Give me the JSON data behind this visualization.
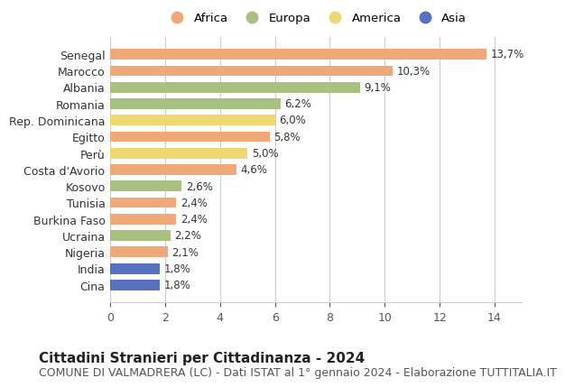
{
  "categories": [
    "Cina",
    "India",
    "Nigeria",
    "Ucraina",
    "Burkina Faso",
    "Tunisia",
    "Kosovo",
    "Costa d'Avorio",
    "Perù",
    "Egitto",
    "Rep. Dominicana",
    "Romania",
    "Albania",
    "Marocco",
    "Senegal"
  ],
  "values": [
    1.8,
    1.8,
    2.1,
    2.2,
    2.4,
    2.4,
    2.6,
    4.6,
    5.0,
    5.8,
    6.0,
    6.2,
    9.1,
    10.3,
    13.7
  ],
  "continents": [
    "Asia",
    "Asia",
    "Africa",
    "Europa",
    "Africa",
    "Africa",
    "Europa",
    "Africa",
    "America",
    "Africa",
    "America",
    "Europa",
    "Europa",
    "Africa",
    "Africa"
  ],
  "labels": [
    "1,8%",
    "1,8%",
    "2,1%",
    "2,2%",
    "2,4%",
    "2,4%",
    "2,6%",
    "4,6%",
    "5,0%",
    "5,8%",
    "6,0%",
    "6,2%",
    "9,1%",
    "10,3%",
    "13,7%"
  ],
  "colors": {
    "Africa": "#F0A878",
    "Europa": "#A8C080",
    "America": "#F0D870",
    "Asia": "#5870C0"
  },
  "legend_order": [
    "Africa",
    "Europa",
    "America",
    "Asia"
  ],
  "legend_colors": [
    "#F0A878",
    "#A8C080",
    "#F0D870",
    "#5870C0"
  ],
  "title": "Cittadini Stranieri per Cittadinanza - 2024",
  "subtitle": "COMUNE DI VALMADRERA (LC) - Dati ISTAT al 1° gennaio 2024 - Elaborazione TUTTITALIA.IT",
  "xlim": [
    0,
    15
  ],
  "xticks": [
    0,
    2,
    4,
    6,
    8,
    10,
    12,
    14
  ],
  "background_color": "#ffffff",
  "grid_color": "#cccccc",
  "bar_height": 0.65,
  "title_fontsize": 11,
  "subtitle_fontsize": 9
}
